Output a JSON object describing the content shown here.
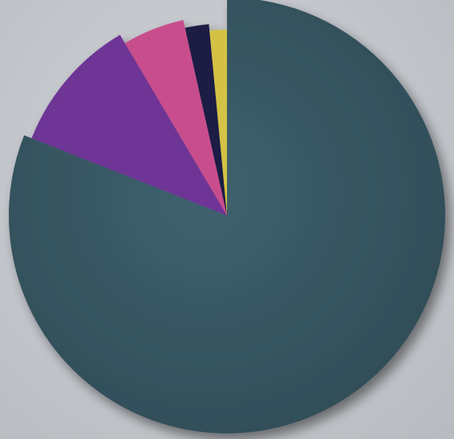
{
  "chart_data": {
    "type": "pie",
    "title": "",
    "legend": "none",
    "start_angle_deg": 0,
    "direction": "clockwise",
    "slices": [
      {
        "value": 81.0,
        "color": "#3a5a66",
        "exploded": false
      },
      {
        "value": 10.5,
        "color": "#6e3596",
        "exploded": true
      },
      {
        "value": 5.0,
        "color": "#c84d8d",
        "exploded": true
      },
      {
        "value": 2.0,
        "color": "#1e1f45",
        "exploded": true
      },
      {
        "value": 1.5,
        "color": "#d4c244",
        "exploded": true
      }
    ]
  }
}
